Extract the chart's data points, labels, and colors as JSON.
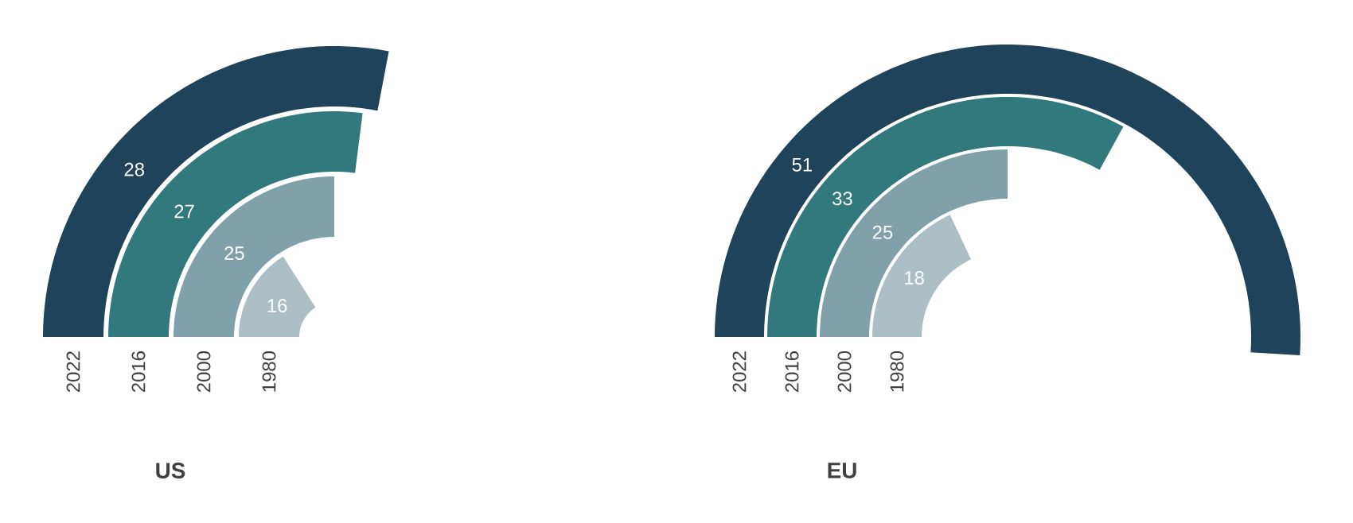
{
  "chart_data": [
    {
      "type": "other",
      "title": "US",
      "categories": [
        "2022",
        "2016",
        "2000",
        "1980"
      ],
      "values": [
        28,
        27,
        25,
        16
      ],
      "colors": [
        "#1e435a",
        "#32797e",
        "#80a1a9",
        "#abbfc4"
      ],
      "data_labels": true
    },
    {
      "type": "other",
      "title": "EU",
      "categories": [
        "2022",
        "2016",
        "2000",
        "1980"
      ],
      "values": [
        51,
        33,
        25,
        18
      ],
      "colors": [
        "#1e435a",
        "#32797e",
        "#80a1a9",
        "#abbfc4"
      ],
      "data_labels": true
    }
  ]
}
